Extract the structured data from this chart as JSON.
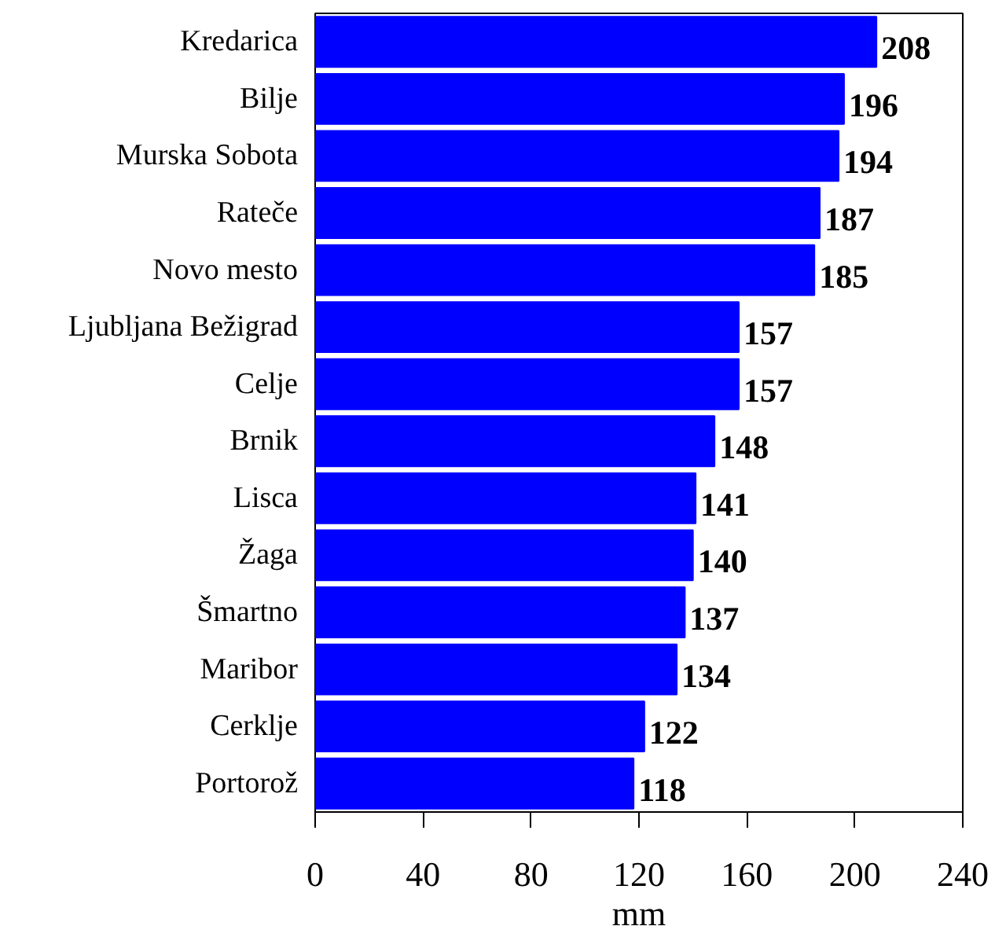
{
  "chart_data": {
    "type": "bar",
    "orientation": "horizontal",
    "xlabel": "mm",
    "categories": [
      "Kredarica",
      "Bilje",
      "Murska Sobota",
      "Rateče",
      "Novo mesto",
      "Ljubljana Bežigrad",
      "Celje",
      "Brnik",
      "Lisca",
      "Žaga",
      "Šmartno",
      "Maribor",
      "Cerklje",
      "Portorož"
    ],
    "values": [
      208,
      196,
      194,
      187,
      185,
      157,
      157,
      148,
      141,
      140,
      137,
      134,
      122,
      118
    ],
    "color": "#0000ff",
    "xlim": [
      0,
      240
    ],
    "xticks": [
      0,
      40,
      80,
      120,
      160,
      200,
      240
    ],
    "data_labels": true,
    "grid": false
  }
}
